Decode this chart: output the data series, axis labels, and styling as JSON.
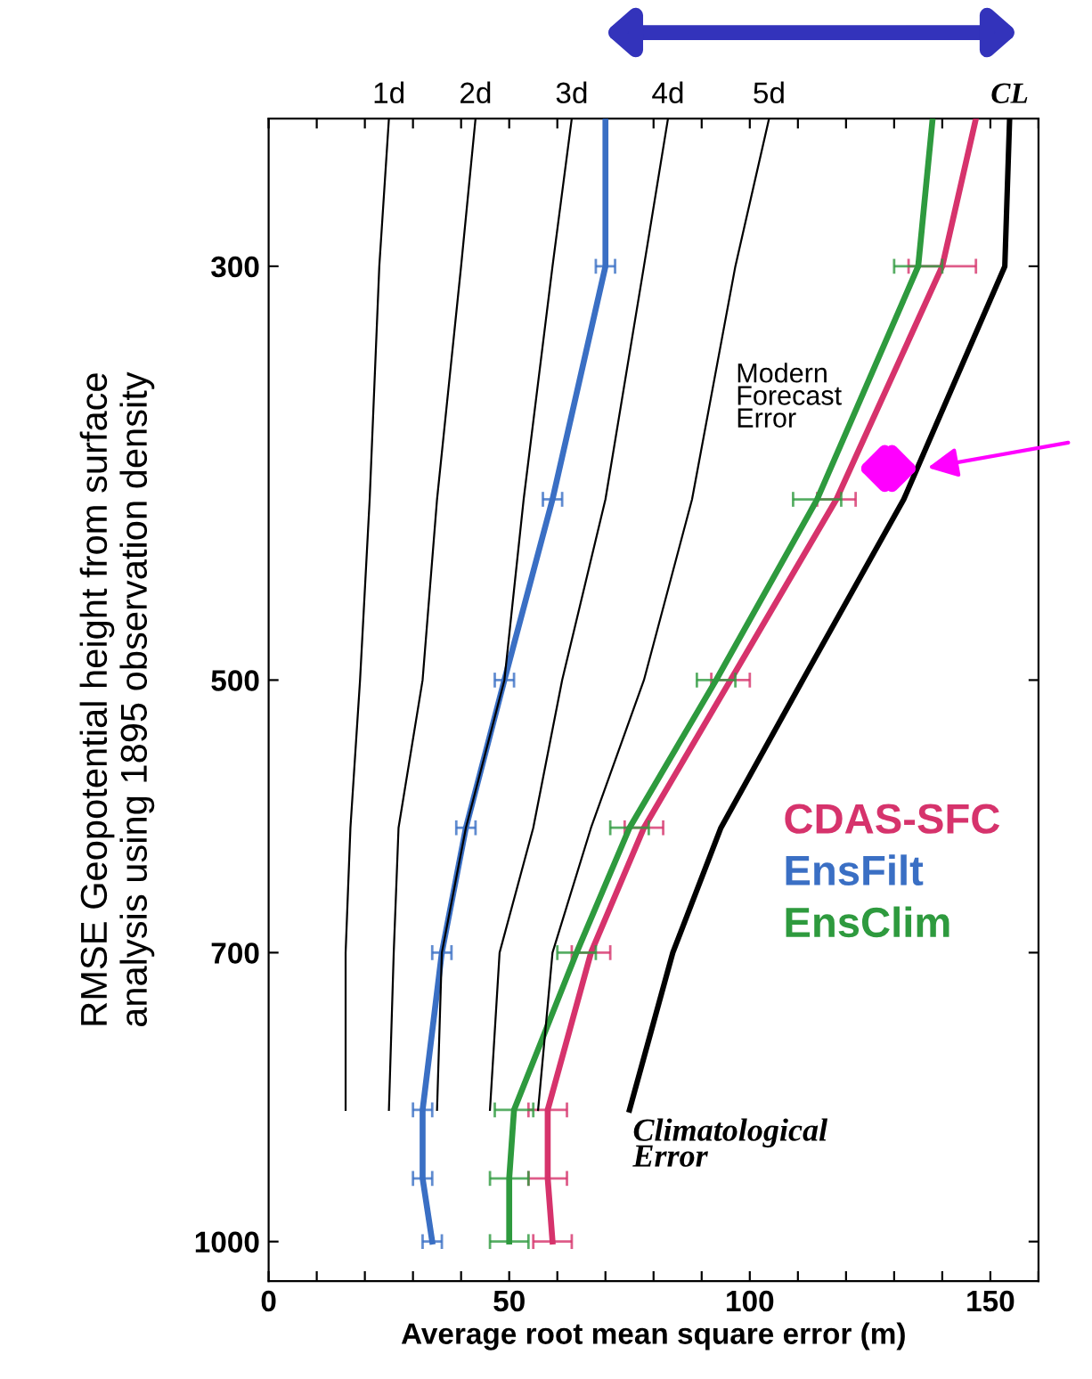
{
  "chart_data": {
    "type": "line",
    "orientation": "horizontal",
    "xlabel": "Average root mean square error (m)",
    "ylabel": "RMSE Geopotential height from surface\nanalysis using 1895 observation density",
    "xlim": [
      0,
      160
    ],
    "xticks": [
      0,
      {
        "value": 10,
        "label": null
      },
      {
        "value": 20,
        "label": null
      },
      {
        "value": 30,
        "label": null
      },
      {
        "value": 40,
        "label": null
      },
      50,
      {
        "value": 60,
        "label": null
      },
      {
        "value": 70,
        "label": null
      },
      {
        "value": 80,
        "label": null
      },
      {
        "value": 90,
        "label": null
      },
      100,
      {
        "value": 110,
        "label": null
      },
      {
        "value": 120,
        "label": null
      },
      {
        "value": 130,
        "label": null
      },
      {
        "value": 140,
        "label": null
      },
      150,
      {
        "value": 160,
        "label": null
      }
    ],
    "ylim": [
      1050,
      250
    ],
    "yticks": [
      300,
      500,
      700,
      1000
    ],
    "log": "y",
    "grid": false,
    "legend": "right",
    "marker": "none",
    "line_style": "solid",
    "annotations": [
      "Modern\nForecast\nError",
      "Climatological\nError"
    ],
    "series": [
      {
        "name": "1d",
        "color": "#000000",
        "x": [
          250,
          300,
          400,
          500,
          600,
          700,
          850
        ],
        "values": [
          25,
          23,
          21,
          19,
          17,
          16,
          16
        ]
      },
      {
        "name": "2d",
        "color": "#000000",
        "x": [
          250,
          300,
          400,
          500,
          600,
          700,
          850
        ],
        "values": [
          43,
          40,
          35,
          32,
          27,
          26,
          25
        ]
      },
      {
        "name": "3d",
        "color": "#000000",
        "x": [
          250,
          300,
          400,
          500,
          600,
          700,
          850
        ],
        "values": [
          63,
          59,
          53,
          49,
          41,
          36,
          35
        ]
      },
      {
        "name": "4d",
        "color": "#000000",
        "x": [
          250,
          300,
          400,
          500,
          600,
          700,
          850
        ],
        "values": [
          83,
          78,
          70,
          61,
          55,
          48,
          46
        ]
      },
      {
        "name": "5d",
        "color": "#000000",
        "x": [
          250,
          300,
          400,
          500,
          600,
          700,
          850
        ],
        "values": [
          104,
          97,
          88,
          78,
          67,
          59,
          56
        ]
      },
      {
        "name": "CL",
        "color": "#000000",
        "x": [
          250,
          300,
          400,
          500,
          600,
          700,
          850
        ],
        "values": [
          154,
          153,
          132,
          111,
          94,
          84,
          75
        ]
      },
      {
        "name": "CDAS-SFC",
        "color": "#d6336c",
        "x": [
          250,
          300,
          400,
          500,
          600,
          700,
          850,
          925,
          1000
        ],
        "values": [
          147,
          140,
          118,
          96,
          78,
          67,
          58,
          58,
          59
        ],
        "errors": [
          null,
          7,
          4,
          4,
          4,
          4,
          4,
          4,
          4
        ]
      },
      {
        "name": "EnsFilt",
        "color": "#3a6fc4",
        "x": [
          250,
          300,
          400,
          500,
          600,
          700,
          850,
          925,
          1000
        ],
        "values": [
          70,
          70,
          59,
          49,
          41,
          36,
          32,
          32,
          34
        ],
        "errors": [
          null,
          2,
          2,
          2,
          2,
          2,
          2,
          2,
          2
        ]
      },
      {
        "name": "EnsClim",
        "color": "#2e9a3e",
        "x": [
          250,
          300,
          400,
          500,
          600,
          700,
          850,
          925,
          1000
        ],
        "values": [
          138,
          135,
          114,
          93,
          75,
          64,
          51,
          50,
          50
        ],
        "errors": [
          null,
          5,
          5,
          4,
          4,
          4,
          4,
          4,
          4
        ]
      }
    ]
  }
}
